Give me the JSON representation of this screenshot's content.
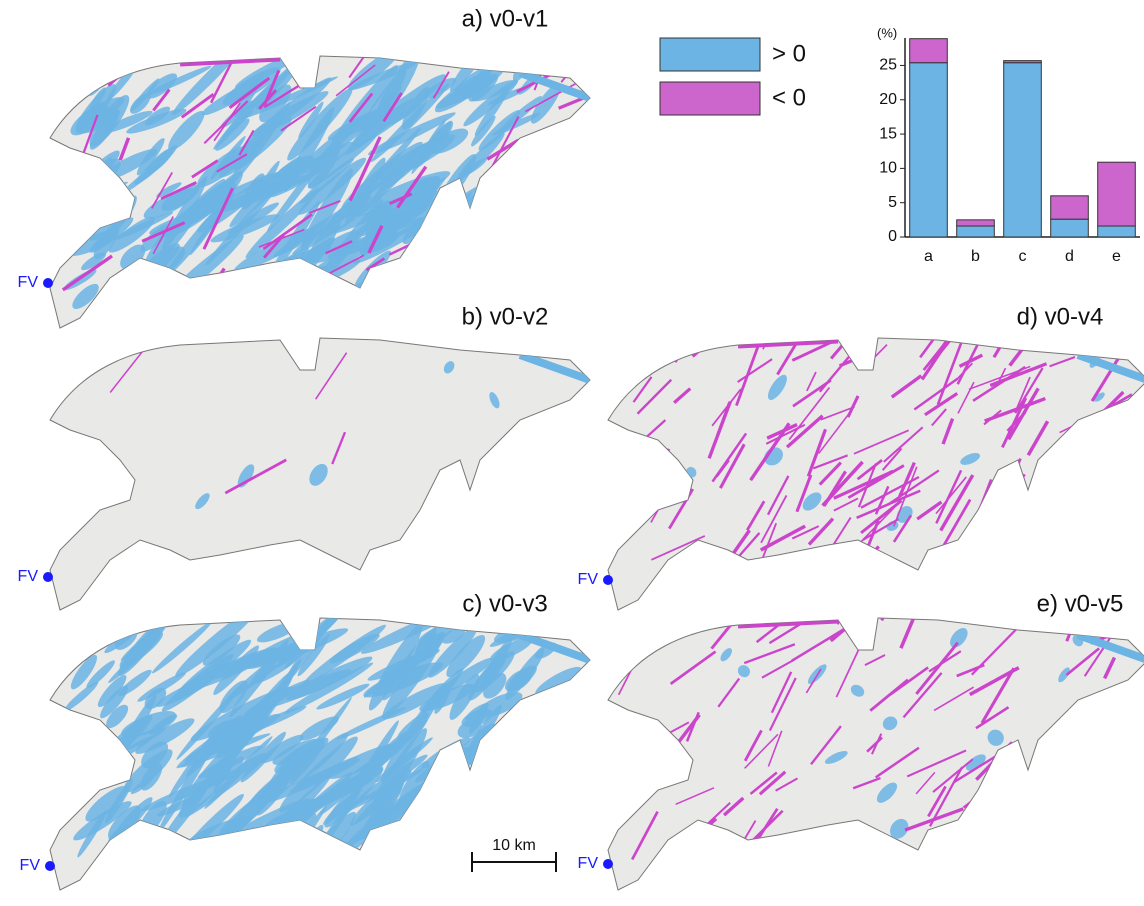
{
  "chart_data": {
    "type": "bar",
    "stacked": true,
    "y_label": "(%)",
    "categories": [
      "a",
      "b",
      "c",
      "d",
      "e"
    ],
    "series": [
      {
        "name": "> 0",
        "color": "#6cb4e4",
        "values": [
          25.4,
          1.6,
          25.4,
          2.6,
          1.6
        ]
      },
      {
        "name": "< 0",
        "color": "#cc66cc",
        "values": [
          3.5,
          0.9,
          0.3,
          3.4,
          9.3
        ]
      }
    ],
    "ylim": [
      0,
      29
    ],
    "yticks": [
      0,
      5,
      10,
      15,
      20,
      25
    ]
  },
  "maps": [
    {
      "title": "a) v0-v1",
      "marker": "FV"
    },
    {
      "title": "b) v0-v2",
      "marker": "FV"
    },
    {
      "title": "c) v0-v3",
      "marker": "FV"
    },
    {
      "title": "d) v0-v4",
      "marker": "FV"
    },
    {
      "title": "e) v0-v5",
      "marker": "FV"
    }
  ],
  "scale_bar": "10 km"
}
